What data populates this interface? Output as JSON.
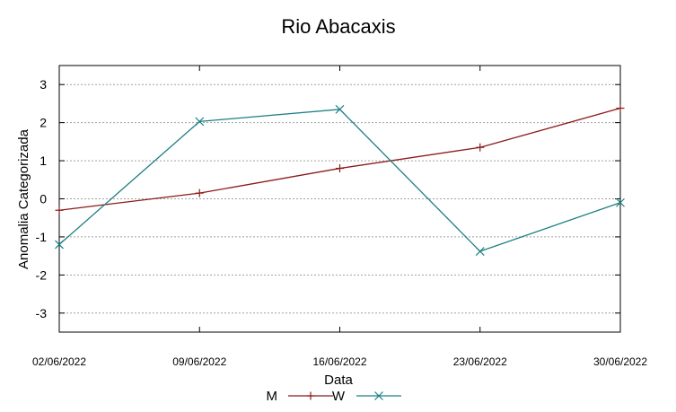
{
  "chart_data": {
    "type": "line",
    "title": "Rio Abacaxis",
    "xlabel": "Data",
    "ylabel": "Anomalia Categorizada",
    "x": [
      "02/06/2022",
      "09/06/2022",
      "16/06/2022",
      "23/06/2022",
      "30/06/2022"
    ],
    "ylim": [
      -3.5,
      3.5
    ],
    "yticks": [
      "3",
      "2",
      "1",
      "0",
      "-1",
      "-2",
      "-3"
    ],
    "ytick_values": [
      3,
      2,
      1,
      0,
      -1,
      -2,
      -3
    ],
    "grid": "horizontal dashed",
    "legend_position": "bottom",
    "series": [
      {
        "name": "M",
        "color": "#8b1a1a",
        "marker": "plus",
        "values": [
          -0.3,
          0.15,
          0.8,
          1.35,
          2.38
        ]
      },
      {
        "name": "W",
        "color": "#1e7f84",
        "marker": "cross",
        "values": [
          -1.2,
          2.03,
          2.35,
          -1.38,
          -0.1
        ]
      }
    ]
  }
}
